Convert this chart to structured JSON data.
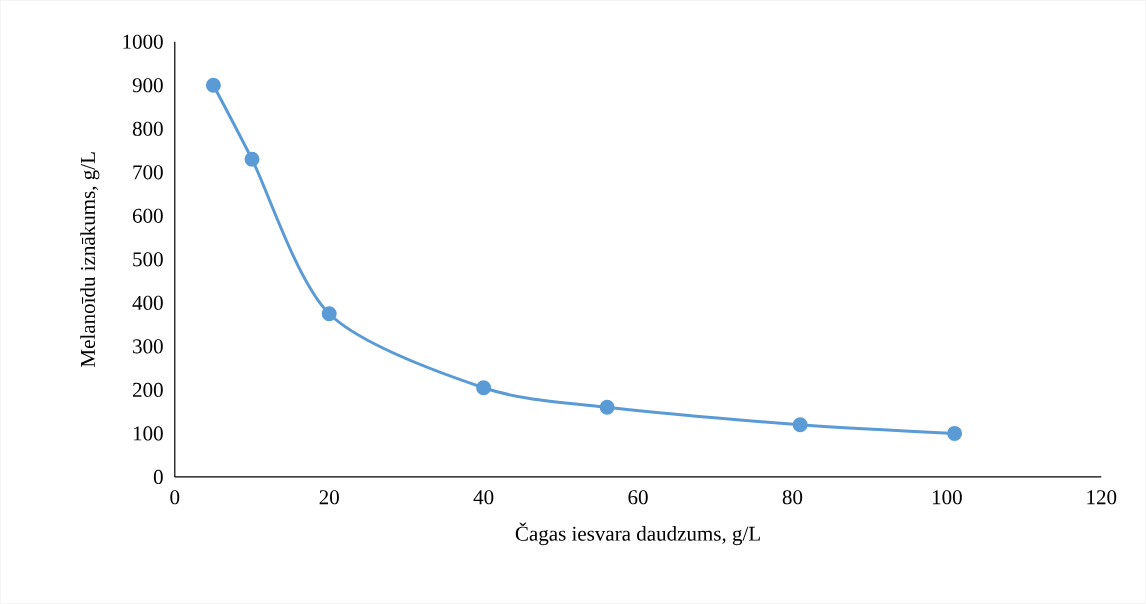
{
  "chart_data": {
    "type": "line",
    "xlabel": "Čagas iesvara daudzums, g/L",
    "ylabel": "Melanoīdu iznākums, g/L",
    "x": [
      5,
      10,
      20,
      40,
      56,
      81,
      101
    ],
    "series": [
      {
        "color": "#5b9bd5",
        "values": [
          900,
          730,
          375,
          205,
          160,
          120,
          100
        ]
      }
    ],
    "xlim": [
      0,
      120
    ],
    "xticks": [
      0,
      20,
      40,
      60,
      80,
      100,
      120
    ],
    "ylim": [
      0,
      1000
    ],
    "yticks": [
      0,
      100,
      200,
      300,
      400,
      500,
      600,
      700,
      800,
      900,
      1000
    ],
    "grid": false,
    "marker": "circle",
    "line_style": "solid"
  }
}
